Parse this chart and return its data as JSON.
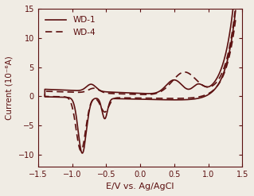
{
  "color": "#5c1010",
  "xlabel": "E/V vs. Ag/AgCl",
  "ylabel": "Current (10⁻⁶A)",
  "xlim": [
    -1.5,
    1.5
  ],
  "ylim": [
    -12,
    15
  ],
  "xticks": [
    -1.5,
    -1.0,
    -0.5,
    0.0,
    0.5,
    1.0,
    1.5
  ],
  "yticks": [
    -10,
    -5,
    0,
    5,
    10,
    15
  ],
  "legend_labels": [
    "WD-1",
    "WD-4"
  ],
  "background_color": "#f0ece4",
  "line_color": "#5c1010"
}
